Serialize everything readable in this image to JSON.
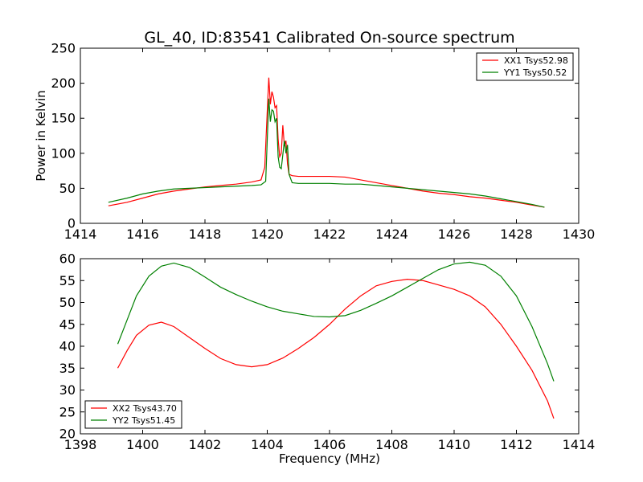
{
  "figure": {
    "title": "GL_40, ID:83541 Calibrated On-source spectrum"
  },
  "chart_data": [
    {
      "type": "line",
      "title": "",
      "xlabel": "",
      "ylabel": "Power in Kelvin",
      "xlim": [
        1414,
        1430
      ],
      "ylim": [
        0,
        250
      ],
      "xticks": [
        1414,
        1416,
        1418,
        1420,
        1422,
        1424,
        1426,
        1428,
        1430
      ],
      "yticks": [
        0,
        50,
        100,
        150,
        200,
        250
      ],
      "legend": "top-right",
      "grid": false,
      "series": [
        {
          "name": "XX1 Tsys52.98",
          "color": "#ff0000",
          "x": [
            1414.9,
            1415.5,
            1416.0,
            1416.5,
            1417.0,
            1417.5,
            1418.0,
            1418.5,
            1419.0,
            1419.5,
            1419.8,
            1419.92,
            1420.0,
            1420.05,
            1420.1,
            1420.15,
            1420.2,
            1420.25,
            1420.3,
            1420.35,
            1420.4,
            1420.45,
            1420.5,
            1420.55,
            1420.6,
            1420.65,
            1420.7,
            1420.8,
            1421.0,
            1421.5,
            1422.0,
            1422.5,
            1423.0,
            1423.5,
            1424.0,
            1424.5,
            1425.0,
            1425.5,
            1426.0,
            1426.5,
            1427.0,
            1427.5,
            1428.0,
            1428.5,
            1428.9
          ],
          "values": [
            25,
            30,
            36,
            42,
            46,
            49,
            52,
            54,
            56,
            59,
            62,
            80,
            160,
            208,
            170,
            188,
            180,
            165,
            168,
            120,
            95,
            100,
            140,
            110,
            118,
            85,
            70,
            68,
            67,
            67,
            67,
            66,
            62,
            58,
            54,
            50,
            46,
            43,
            41,
            38,
            36,
            33,
            30,
            26,
            23
          ]
        },
        {
          "name": "YY1 Tsys50.52",
          "color": "#008000",
          "x": [
            1414.9,
            1415.5,
            1416.0,
            1416.5,
            1417.0,
            1417.5,
            1418.0,
            1418.5,
            1419.0,
            1419.5,
            1419.8,
            1419.95,
            1420.05,
            1420.1,
            1420.15,
            1420.2,
            1420.25,
            1420.3,
            1420.35,
            1420.4,
            1420.45,
            1420.5,
            1420.55,
            1420.6,
            1420.65,
            1420.7,
            1420.8,
            1421.0,
            1421.5,
            1422.0,
            1422.5,
            1423.0,
            1423.5,
            1424.0,
            1424.5,
            1425.0,
            1425.5,
            1426.0,
            1426.5,
            1427.0,
            1427.5,
            1428.0,
            1428.5,
            1428.9
          ],
          "values": [
            30,
            36,
            42,
            46,
            49,
            50,
            51,
            52,
            53,
            54,
            55,
            60,
            178,
            145,
            162,
            160,
            145,
            150,
            95,
            80,
            78,
            98,
            118,
            100,
            112,
            70,
            58,
            57,
            57,
            57,
            56,
            56,
            54,
            52,
            50,
            48,
            46,
            44,
            42,
            39,
            35,
            31,
            27,
            23
          ]
        }
      ]
    },
    {
      "type": "line",
      "title": "",
      "xlabel": "Frequency (MHz)",
      "ylabel": "",
      "xlim": [
        1398,
        1414
      ],
      "ylim": [
        20,
        60
      ],
      "xticks": [
        1398,
        1400,
        1402,
        1404,
        1406,
        1408,
        1410,
        1412,
        1414
      ],
      "yticks": [
        20,
        25,
        30,
        35,
        40,
        45,
        50,
        55,
        60
      ],
      "legend": "bottom-left",
      "grid": false,
      "series": [
        {
          "name": "XX2 Tsys43.70",
          "color": "#ff0000",
          "x": [
            1399.2,
            1399.5,
            1399.8,
            1400.2,
            1400.6,
            1401.0,
            1401.5,
            1402.0,
            1402.5,
            1403.0,
            1403.5,
            1404.0,
            1404.5,
            1405.0,
            1405.5,
            1406.0,
            1406.5,
            1407.0,
            1407.5,
            1408.0,
            1408.5,
            1409.0,
            1409.5,
            1410.0,
            1410.5,
            1411.0,
            1411.5,
            1412.0,
            1412.5,
            1413.0,
            1413.2
          ],
          "values": [
            35,
            39,
            42.5,
            44.8,
            45.5,
            44.5,
            42,
            39.5,
            37.2,
            35.8,
            35.3,
            35.8,
            37.3,
            39.5,
            42,
            45,
            48.5,
            51.5,
            53.8,
            54.8,
            55.3,
            55,
            54,
            53,
            51.5,
            49,
            45,
            40,
            34.5,
            27.5,
            23.5
          ]
        },
        {
          "name": "YY2 Tsys51.45",
          "color": "#008000",
          "x": [
            1399.2,
            1399.5,
            1399.8,
            1400.2,
            1400.6,
            1401.0,
            1401.5,
            1402.0,
            1402.5,
            1403.0,
            1403.5,
            1404.0,
            1404.5,
            1405.0,
            1405.5,
            1406.0,
            1406.5,
            1407.0,
            1407.5,
            1408.0,
            1408.5,
            1409.0,
            1409.5,
            1410.0,
            1410.5,
            1411.0,
            1411.5,
            1412.0,
            1412.5,
            1413.0,
            1413.2
          ],
          "values": [
            40.5,
            46,
            51.5,
            56,
            58.3,
            59,
            58,
            55.8,
            53.5,
            51.8,
            50.3,
            49,
            48,
            47.4,
            46.8,
            46.7,
            47,
            48.2,
            49.8,
            51.5,
            53.5,
            55.5,
            57.5,
            58.8,
            59.2,
            58.5,
            56,
            51.5,
            44.5,
            36,
            32
          ]
        }
      ]
    }
  ]
}
